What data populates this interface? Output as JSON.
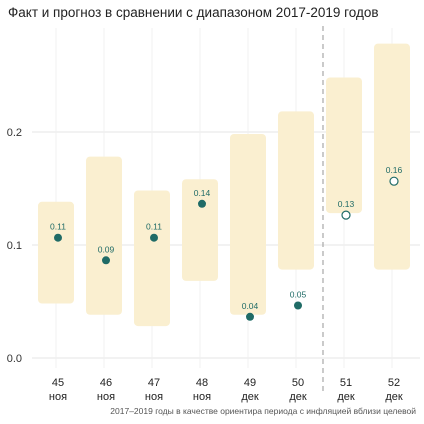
{
  "chart_data": {
    "type": "range-point",
    "title": "Факт и прогноз в сравнении с диапазоном 2017-2019 годов",
    "caption": "2017–2019 годы в качестве ориентира периода с инфляцией вблизи целевой",
    "categories": [
      {
        "week": "45",
        "month": "ноя"
      },
      {
        "week": "46",
        "month": "ноя"
      },
      {
        "week": "47",
        "month": "ноя"
      },
      {
        "week": "48",
        "month": "ноя"
      },
      {
        "week": "49",
        "month": "дек"
      },
      {
        "week": "50",
        "month": "дек"
      },
      {
        "week": "51",
        "month": "дек"
      },
      {
        "week": "52",
        "month": "дек"
      }
    ],
    "series": [
      {
        "values": [
          0.11,
          0.09,
          0.11,
          0.14,
          0.04,
          0.05,
          0.13,
          0.16
        ],
        "labels": [
          "0.11",
          "0.09",
          "0.11",
          "0.14",
          "0.04",
          "0.05",
          "0.13",
          "0.16"
        ],
        "kind": [
          "actual",
          "actual",
          "actual",
          "actual",
          "actual",
          "actual",
          "forecast",
          "forecast"
        ]
      }
    ],
    "ranges": [
      {
        "low": 0.05,
        "high": 0.14
      },
      {
        "low": 0.04,
        "high": 0.18
      },
      {
        "low": 0.03,
        "high": 0.15
      },
      {
        "low": 0.07,
        "high": 0.16
      },
      {
        "low": 0.04,
        "high": 0.2
      },
      {
        "low": 0.08,
        "high": 0.22
      },
      {
        "low": 0.13,
        "high": 0.25
      },
      {
        "low": 0.08,
        "high": 0.28
      }
    ],
    "yticks": [
      "0.0",
      "0.1",
      "0.2"
    ],
    "ylim": [
      0.0,
      0.28
    ],
    "forecast_divider_after": "50",
    "grid": true,
    "colors": {
      "range": "#faefd0",
      "point": "#1f6b66",
      "grid": "#e4e4e4",
      "divider": "#a8a8a8"
    }
  }
}
